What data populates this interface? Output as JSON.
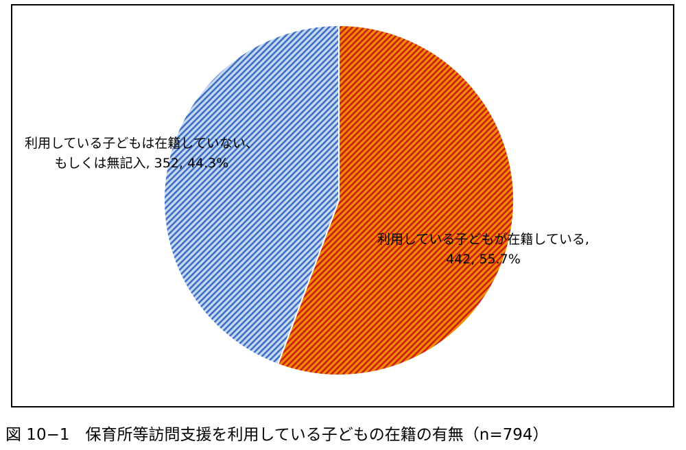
{
  "chart_data": {
    "type": "pie",
    "n": 794,
    "slices": [
      {
        "label_lines": [
          "利用している子どもが在籍している,",
          "442, 55.7%"
        ],
        "value": 442,
        "percent": 55.7,
        "color": "#f28c00",
        "hatch": "#cc1a1a"
      },
      {
        "label_lines": [
          "利用している子どもは在籍していない、",
          "もしくは無記入, 352, 44.3%"
        ],
        "value": 352,
        "percent": 44.3,
        "color": "#c8d8f0",
        "hatch": "#3a6fc4"
      }
    ],
    "legend": "none"
  },
  "caption": "図 10−1　保育所等訪問支援を利用している子どもの在籍の有無（n=794）"
}
